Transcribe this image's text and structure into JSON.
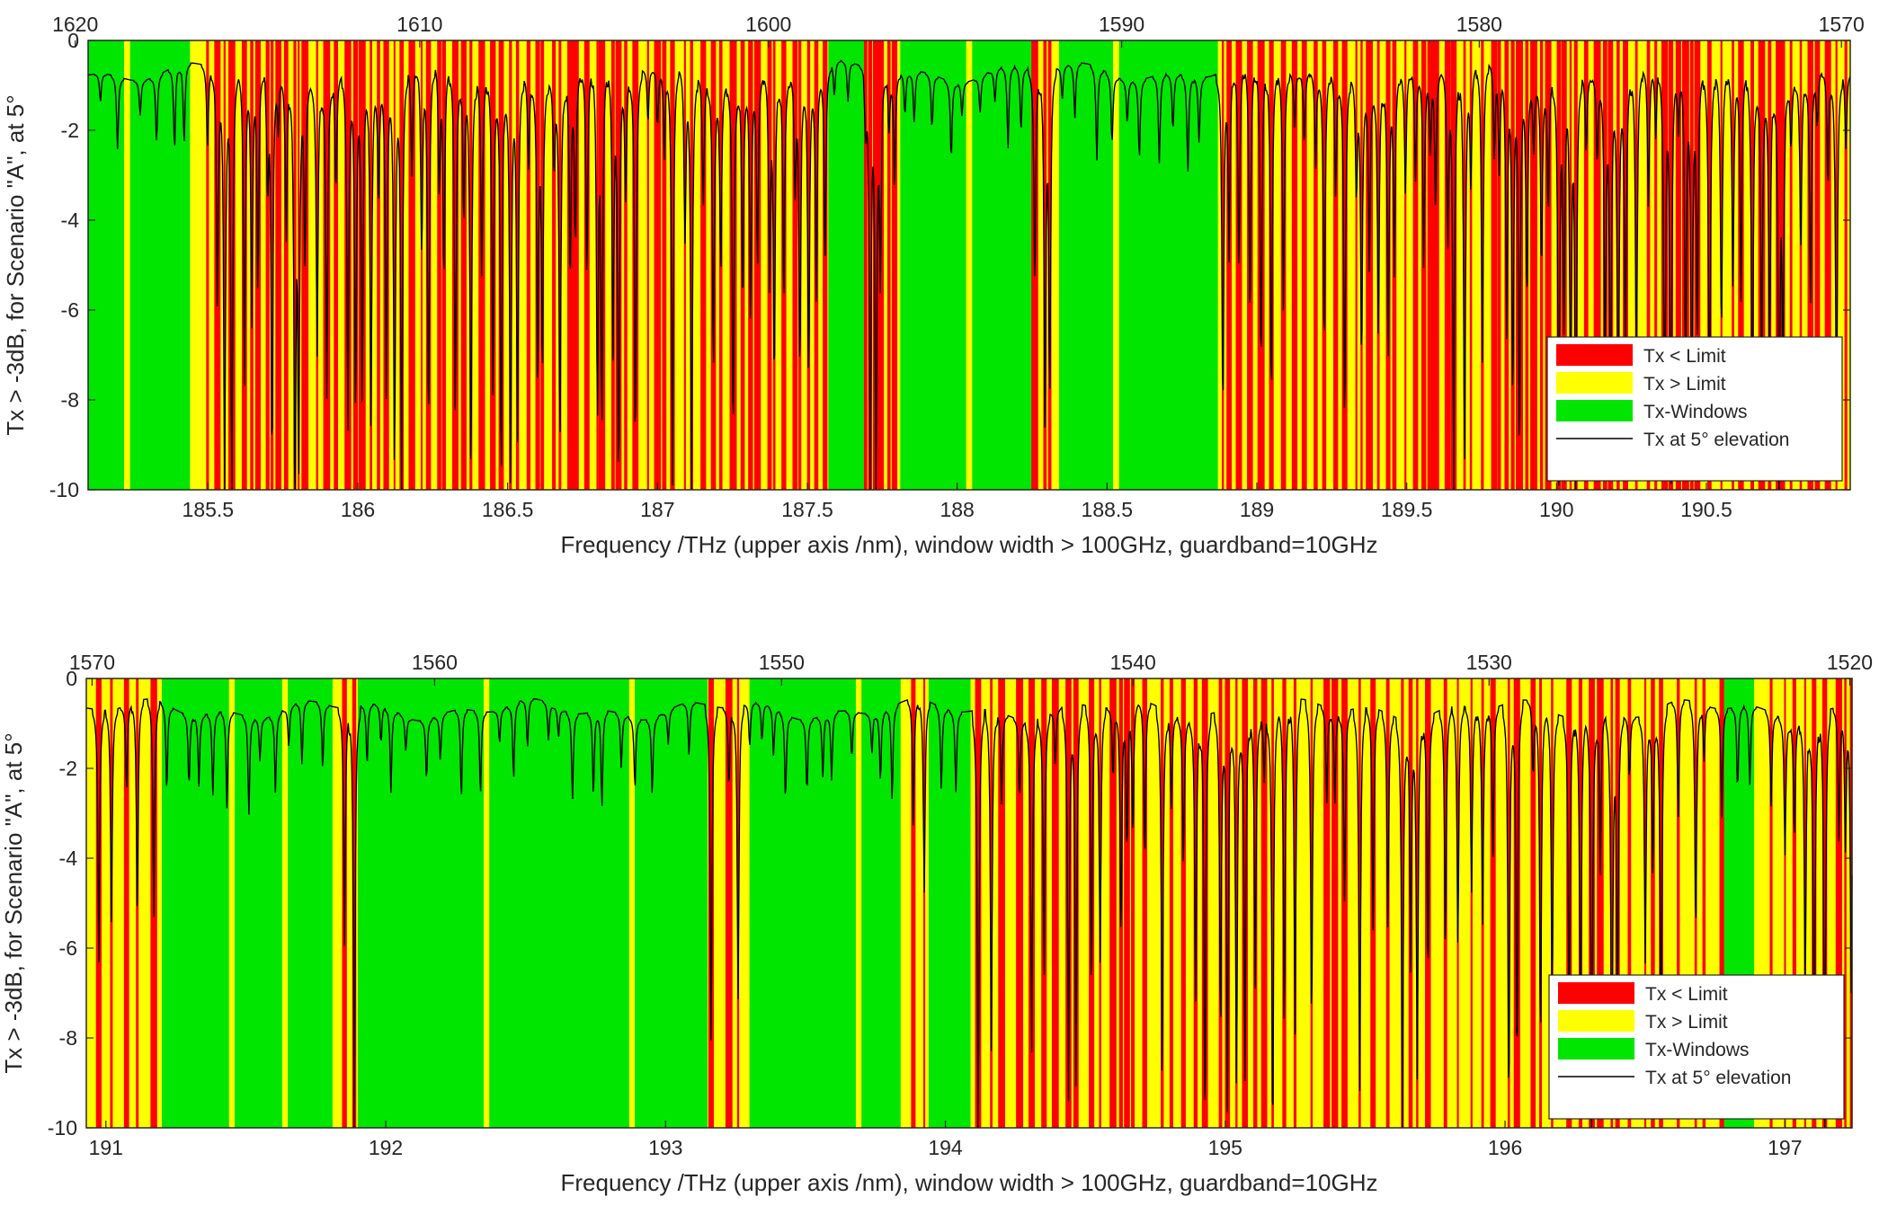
{
  "chart_data": [
    {
      "type": "area",
      "xlabel": "Frequency  /THz  (upper axis  /nm), window width > 100GHz, guardband=10GHz",
      "ylabel": "Tx > -3dB, for Scenario \"A\", at 5°",
      "xlim": [
        185.1,
        190.98
      ],
      "ylim": [
        -10,
        0
      ],
      "xticks": [
        "185.5",
        "186",
        "186.5",
        "187",
        "187.5",
        "188",
        "188.5",
        "189",
        "189.5",
        "190",
        "190.5"
      ],
      "xtick_values": [
        185.5,
        186,
        186.5,
        187,
        187.5,
        188,
        188.5,
        189,
        189.5,
        190,
        190.5
      ],
      "yticks": [
        "0",
        "-2",
        "-4",
        "-6",
        "-8",
        "-10"
      ],
      "ytick_values": [
        0,
        -2,
        -4,
        -6,
        -8,
        -10
      ],
      "top_axis_nm": [
        "1620",
        "1610",
        "1600",
        "1590",
        "1580",
        "1570"
      ],
      "top_axis_nm_values": [
        1620,
        1610,
        1600,
        1590,
        1580,
        1570
      ],
      "legend": [
        "Tx < Limit",
        "Tx > Limit",
        "Tx-Windows",
        "Tx at 5° elevation"
      ],
      "legend_position": "lower-right",
      "green_windows_thz": [
        [
          185.1,
          185.22
        ],
        [
          185.24,
          185.44
        ],
        [
          187.57,
          187.69
        ],
        [
          187.81,
          188.03
        ],
        [
          188.05,
          188.25
        ],
        [
          188.34,
          188.52
        ],
        [
          188.54,
          188.87
        ]
      ],
      "line_level_db": -0.7,
      "absorption_density": "high",
      "grid": false
    },
    {
      "type": "area",
      "xlabel": "Frequency  /THz  (upper axis  /nm), window width > 100GHz, guardband=10GHz",
      "ylabel": "Tx > -3dB, for Scenario \"A\", at 5°",
      "xlim": [
        190.93,
        197.24
      ],
      "ylim": [
        -10,
        0
      ],
      "xticks": [
        "191",
        "192",
        "193",
        "194",
        "195",
        "196",
        "197"
      ],
      "xtick_values": [
        191,
        192,
        193,
        194,
        195,
        196,
        197
      ],
      "yticks": [
        "0",
        "-2",
        "-4",
        "-6",
        "-8",
        "-10"
      ],
      "ytick_values": [
        0,
        -2,
        -4,
        -6,
        -8,
        -10
      ],
      "top_axis_nm": [
        "1570",
        "1560",
        "1550",
        "1540",
        "1530",
        "1520"
      ],
      "top_axis_nm_values": [
        1570,
        1560,
        1550,
        1540,
        1530,
        1520
      ],
      "legend": [
        "Tx < Limit",
        "Tx > Limit",
        "Tx-Windows",
        "Tx at 5° elevation"
      ],
      "legend_position": "lower-right",
      "green_windows_thz": [
        [
          191.2,
          191.44
        ],
        [
          191.46,
          191.63
        ],
        [
          191.65,
          191.81
        ],
        [
          191.9,
          192.35
        ],
        [
          192.37,
          192.87
        ],
        [
          192.89,
          193.15
        ],
        [
          193.3,
          193.68
        ],
        [
          193.7,
          193.84
        ],
        [
          193.94,
          194.09
        ],
        [
          196.78,
          196.89
        ]
      ],
      "line_level_db": -0.7,
      "absorption_density": "moderate",
      "grid": false
    }
  ]
}
